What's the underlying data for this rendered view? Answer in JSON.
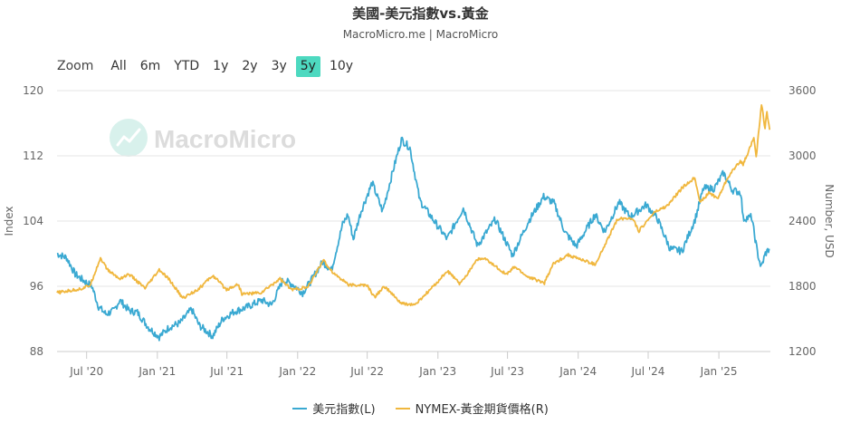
{
  "chart_data": {
    "type": "line",
    "title": "美國-美元指數vs.黃金",
    "subtitle": "MacroMicro.me | MacroMicro",
    "watermark": "MacroMicro",
    "zoom": {
      "label": "Zoom",
      "buttons": [
        "All",
        "6m",
        "YTD",
        "1y",
        "2y",
        "3y",
        "5y",
        "10y"
      ],
      "active": "5y"
    },
    "x_ticks": [
      "Jul '20",
      "Jan '21",
      "Jul '21",
      "Jan '22",
      "Jul '22",
      "Jan '23",
      "Jul '23",
      "Jan '24",
      "Jul '24",
      "Jan '25"
    ],
    "x_range": [
      "2020-04-15",
      "2025-05-15"
    ],
    "y_left": {
      "label": "Index",
      "ticks": [
        88,
        96,
        104,
        112,
        120
      ],
      "range": [
        88,
        120
      ]
    },
    "y_right": {
      "label": "Number, USD",
      "ticks": [
        1200,
        1800,
        2400,
        3000,
        3600
      ],
      "range": [
        1200,
        3600
      ]
    },
    "grid": true,
    "legend_position": "bottom",
    "series": [
      {
        "name": "美元指數(L)",
        "axis": "left",
        "color": "#3aa9d2",
        "points": [
          [
            "2020-04-15",
            100.0
          ],
          [
            "2020-05-10",
            99.5
          ],
          [
            "2020-06-01",
            97.5
          ],
          [
            "2020-06-20",
            96.8
          ],
          [
            "2020-07-15",
            96.0
          ],
          [
            "2020-08-01",
            93.5
          ],
          [
            "2020-08-20",
            92.6
          ],
          [
            "2020-09-10",
            93.0
          ],
          [
            "2020-09-25",
            94.3
          ],
          [
            "2020-10-20",
            93.0
          ],
          [
            "2020-11-10",
            92.8
          ],
          [
            "2020-12-10",
            90.9
          ],
          [
            "2021-01-06",
            89.8
          ],
          [
            "2021-02-01",
            91.0
          ],
          [
            "2021-03-01",
            91.5
          ],
          [
            "2021-03-31",
            93.2
          ],
          [
            "2021-04-20",
            91.2
          ],
          [
            "2021-05-25",
            89.9
          ],
          [
            "2021-06-20",
            92.0
          ],
          [
            "2021-07-20",
            92.9
          ],
          [
            "2021-08-20",
            93.4
          ],
          [
            "2021-09-30",
            94.3
          ],
          [
            "2021-10-25",
            93.7
          ],
          [
            "2021-11-24",
            96.8
          ],
          [
            "2021-12-20",
            96.2
          ],
          [
            "2022-01-14",
            95.2
          ],
          [
            "2022-02-01",
            96.4
          ],
          [
            "2022-03-07",
            99.0
          ],
          [
            "2022-03-30",
            98.0
          ],
          [
            "2022-04-28",
            103.6
          ],
          [
            "2022-05-12",
            104.8
          ],
          [
            "2022-05-26",
            101.8
          ],
          [
            "2022-06-15",
            105.2
          ],
          [
            "2022-07-14",
            108.7
          ],
          [
            "2022-08-10",
            105.2
          ],
          [
            "2022-09-05",
            110.0
          ],
          [
            "2022-09-28",
            114.0
          ],
          [
            "2022-10-20",
            113.0
          ],
          [
            "2022-11-15",
            106.5
          ],
          [
            "2022-12-10",
            104.8
          ],
          [
            "2023-01-25",
            101.8
          ],
          [
            "2023-03-08",
            105.6
          ],
          [
            "2023-04-14",
            101.0
          ],
          [
            "2023-05-30",
            104.2
          ],
          [
            "2023-07-14",
            99.8
          ],
          [
            "2023-08-25",
            104.0
          ],
          [
            "2023-10-03",
            107.0
          ],
          [
            "2023-10-30",
            106.2
          ],
          [
            "2023-11-28",
            102.6
          ],
          [
            "2023-12-27",
            100.9
          ],
          [
            "2024-02-14",
            104.8
          ],
          [
            "2024-03-10",
            102.7
          ],
          [
            "2024-04-16",
            106.3
          ],
          [
            "2024-05-15",
            104.5
          ],
          [
            "2024-06-26",
            106.0
          ],
          [
            "2024-07-25",
            104.3
          ],
          [
            "2024-08-27",
            100.6
          ],
          [
            "2024-09-27",
            100.3
          ],
          [
            "2024-10-31",
            104.2
          ],
          [
            "2024-11-22",
            108.0
          ],
          [
            "2024-12-20",
            108.0
          ],
          [
            "2025-01-13",
            109.9
          ],
          [
            "2025-02-05",
            107.8
          ],
          [
            "2025-02-27",
            107.5
          ],
          [
            "2025-03-05",
            104.3
          ],
          [
            "2025-03-27",
            104.5
          ],
          [
            "2025-04-11",
            100.2
          ],
          [
            "2025-04-21",
            98.3
          ],
          [
            "2025-05-02",
            100.0
          ],
          [
            "2025-05-12",
            100.6
          ]
        ]
      },
      {
        "name": "NYMEX-黃金期貨價格(R)",
        "axis": "right",
        "color": "#f0b73e",
        "points": [
          [
            "2020-04-15",
            1740
          ],
          [
            "2020-05-20",
            1760
          ],
          [
            "2020-06-20",
            1780
          ],
          [
            "2020-07-10",
            1810
          ],
          [
            "2020-08-06",
            2060
          ],
          [
            "2020-08-25",
            1950
          ],
          [
            "2020-09-24",
            1870
          ],
          [
            "2020-10-20",
            1910
          ],
          [
            "2020-11-30",
            1780
          ],
          [
            "2021-01-06",
            1950
          ],
          [
            "2021-02-01",
            1860
          ],
          [
            "2021-03-08",
            1690
          ],
          [
            "2021-04-20",
            1780
          ],
          [
            "2021-05-25",
            1900
          ],
          [
            "2021-06-30",
            1770
          ],
          [
            "2021-07-30",
            1820
          ],
          [
            "2021-08-09",
            1730
          ],
          [
            "2021-09-28",
            1740
          ],
          [
            "2021-11-16",
            1870
          ],
          [
            "2021-12-15",
            1770
          ],
          [
            "2022-01-28",
            1790
          ],
          [
            "2022-03-08",
            2040
          ],
          [
            "2022-04-05",
            1920
          ],
          [
            "2022-05-16",
            1810
          ],
          [
            "2022-06-30",
            1810
          ],
          [
            "2022-07-20",
            1700
          ],
          [
            "2022-08-15",
            1800
          ],
          [
            "2022-09-28",
            1640
          ],
          [
            "2022-11-03",
            1630
          ],
          [
            "2022-12-15",
            1780
          ],
          [
            "2023-01-26",
            1940
          ],
          [
            "2023-02-28",
            1820
          ],
          [
            "2023-04-13",
            2050
          ],
          [
            "2023-05-04",
            2050
          ],
          [
            "2023-06-29",
            1910
          ],
          [
            "2023-07-20",
            1980
          ],
          [
            "2023-08-21",
            1890
          ],
          [
            "2023-10-05",
            1830
          ],
          [
            "2023-10-27",
            2000
          ],
          [
            "2023-12-04",
            2090
          ],
          [
            "2024-02-14",
            2000
          ],
          [
            "2024-03-07",
            2150
          ],
          [
            "2024-04-12",
            2420
          ],
          [
            "2024-05-20",
            2430
          ],
          [
            "2024-06-07",
            2310
          ],
          [
            "2024-07-17",
            2480
          ],
          [
            "2024-08-20",
            2540
          ],
          [
            "2024-09-26",
            2700
          ],
          [
            "2024-10-30",
            2800
          ],
          [
            "2024-11-14",
            2570
          ],
          [
            "2024-12-06",
            2660
          ],
          [
            "2024-12-30",
            2610
          ],
          [
            "2025-01-24",
            2800
          ],
          [
            "2025-02-24",
            2950
          ],
          [
            "2025-03-05",
            2920
          ],
          [
            "2025-03-20",
            3050
          ],
          [
            "2025-04-02",
            3170
          ],
          [
            "2025-04-08",
            2980
          ],
          [
            "2025-04-22",
            3480
          ],
          [
            "2025-05-01",
            3250
          ],
          [
            "2025-05-06",
            3410
          ],
          [
            "2025-05-13",
            3240
          ]
        ]
      }
    ]
  }
}
